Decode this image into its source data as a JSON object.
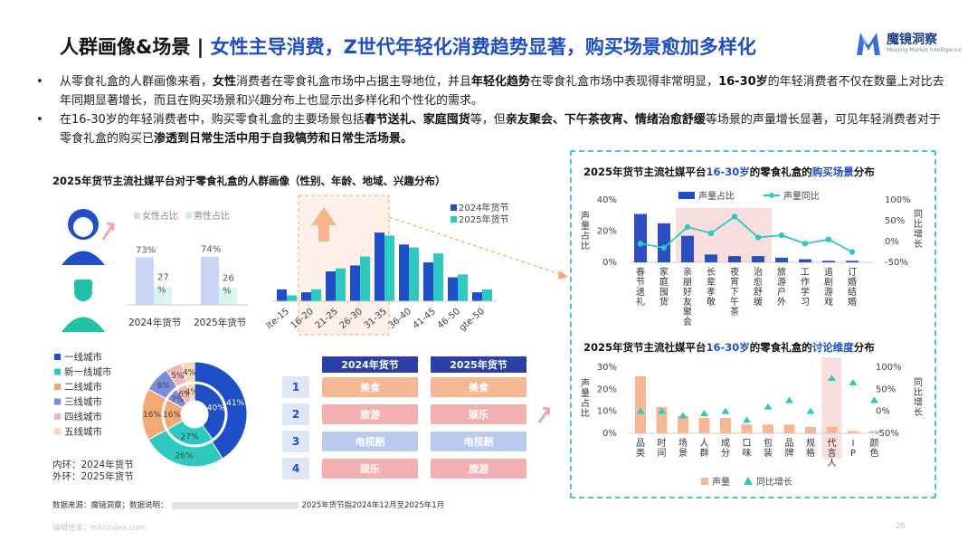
{
  "header": {
    "title_main": "人群画像&场景 | ",
    "title_sub": "女性主导消费，Z世代年轻化消费趋势显著，购买场景愈加多样化",
    "logo_cn": "魔镜洞察",
    "logo_en": "Moojing Market Intelligence"
  },
  "bullets": [
    [
      {
        "t": "从零食礼盒的人群画像来看，",
        "b": false
      },
      {
        "t": "女性",
        "b": true
      },
      {
        "t": "消费者在零食礼盒市场中占据主导地位，并且",
        "b": false
      },
      {
        "t": "年轻化趋势",
        "b": true
      },
      {
        "t": "在零食礼盒市场中表现得非常明显，",
        "b": false
      },
      {
        "t": "16-30岁",
        "b": true
      },
      {
        "t": "的年轻消费者不仅在数量上对比去年同期显著增长，而且在购买场景和兴趣分布上也显示出多样化和个性化的需求。",
        "b": false
      }
    ],
    [
      {
        "t": "在16-30岁的年轻消费者中，购买零食礼盒的主要场景包括",
        "b": false
      },
      {
        "t": "春节送礼、家庭囤货",
        "b": true
      },
      {
        "t": "等，但",
        "b": false
      },
      {
        "t": "亲友聚会、下午茶夜宵、情绪治愈舒缓",
        "b": true
      },
      {
        "t": "等场景的声量增长显著，可见年轻消费者对于零食礼盒的购买已",
        "b": false
      },
      {
        "t": "渗透到日常生活中用于自我犒劳和日常生活场景。",
        "b": true
      }
    ]
  ],
  "left_title": "2025年货节主流社媒平台对于零食礼盒的人群画像（性别、年龄、地域、兴趣分布）",
  "right_top_title": {
    "pre": "2025年货节主流社媒平台",
    "hl1": "16-30岁",
    "mid": "的零食礼盒的",
    "hl2": "购买场景",
    "post": "分布"
  },
  "right_bottom_title": {
    "pre": "2025年货节主流社媒平台",
    "hl1": "16-30岁",
    "mid": "的零食礼盒的",
    "hl2": "讨论维度",
    "post": "分布"
  },
  "source": {
    "label": "数据来源：魔镜洞察；数据说明：",
    "note": "2025年货节指2024年12月至2025年1月"
  },
  "footer": "编辑搜索：mktindex.com",
  "page_number": "26",
  "colors": {
    "blue": "#1f4fc6",
    "teal": "#2ec9c0",
    "orange": "#f4a974",
    "pink": "#f9dede",
    "dark": "#2b3fa6"
  },
  "chart_data": [
    {
      "type": "bar",
      "name": "gender",
      "categories": [
        "2024年货节",
        "2025年货节"
      ],
      "series": [
        {
          "name": "女性占比",
          "values": [
            73,
            74
          ],
          "labels": [
            "73%",
            "74%"
          ]
        },
        {
          "name": "男性占比",
          "values": [
            27,
            26
          ],
          "labels": [
            "27%",
            "26%"
          ]
        }
      ]
    },
    {
      "type": "bar",
      "name": "age",
      "categories": [
        "lte-15",
        "16-20",
        "21-25",
        "26-30",
        "31-35",
        "36-40",
        "41-45",
        "46-50",
        "gte-50"
      ],
      "series": [
        {
          "name": "2024年货节",
          "values": [
            4,
            3,
            10,
            12,
            23,
            19,
            13,
            8,
            3
          ]
        },
        {
          "name": "2025年货节",
          "values": [
            2,
            4,
            11,
            15,
            22,
            18,
            16,
            9,
            4
          ]
        }
      ]
    },
    {
      "type": "pie",
      "name": "city",
      "legend": [
        "一线城市",
        "新一线城市",
        "二线城市",
        "三线城市",
        "四线城市",
        "五线城市"
      ],
      "legend_colors": [
        "#1f4fc6",
        "#2ec9c0",
        "#f4a974",
        "#7b8cde",
        "#f3b6b6",
        "#f7d7b4"
      ],
      "inner_label": "内环：2024年货节",
      "outer_label": "外环：2025年货节",
      "inner_values": [
        40,
        27,
        16,
        7,
        6,
        4
      ],
      "outer_values": [
        41,
        26,
        16,
        8,
        5,
        4
      ],
      "inner_labels": [
        "40%",
        "27%",
        "16%",
        "7%",
        "6%",
        "4%"
      ],
      "outer_labels": [
        "41%",
        "26%",
        "16%",
        "8%",
        "5%",
        "4%"
      ]
    },
    {
      "type": "table",
      "name": "interest",
      "columns": [
        "2024年货节",
        "2025年货节"
      ],
      "ranks": [
        "1",
        "2",
        "3",
        "4"
      ],
      "rows": [
        [
          "美食",
          "美食"
        ],
        [
          "旅游",
          "娱乐"
        ],
        [
          "电视剧",
          "电视剧"
        ],
        [
          "娱乐",
          "旅游"
        ]
      ]
    },
    {
      "type": "bar",
      "name": "purchase_scenes",
      "categories": [
        "春节送礼",
        "家庭囤货",
        "亲朋好友聚会",
        "长辈孝敬",
        "夜宵下午茶",
        "治愈舒缓",
        "旅游户外",
        "工作学习",
        "追剧游戏",
        "订婚结婚"
      ],
      "series": [
        {
          "name": "声量占比",
          "axis": "left",
          "values": [
            31,
            25,
            17,
            5,
            4,
            4,
            3,
            2,
            1,
            1
          ]
        },
        {
          "name": "声量同比",
          "axis": "right",
          "values": [
            -5,
            -15,
            35,
            20,
            60,
            10,
            15,
            -5,
            5,
            -25
          ]
        }
      ],
      "ylabel_left": "声量占比",
      "ylabel_right": "同比增长",
      "left_ticks": [
        "40%",
        "20%",
        "0%"
      ],
      "right_ticks": [
        "100%",
        "50%",
        "0%",
        "-50%"
      ],
      "ylim_left": [
        0,
        40
      ],
      "ylim_right": [
        -50,
        100
      ]
    },
    {
      "type": "bar",
      "name": "discussion_dimensions",
      "categories": [
        "品类",
        "时间",
        "场景",
        "人群",
        "成分",
        "口味",
        "包装",
        "品牌",
        "规格",
        "代言人",
        "IP",
        "颜色"
      ],
      "series": [
        {
          "name": "声量",
          "axis": "left",
          "values": [
            26,
            12,
            8,
            7,
            7,
            4,
            4,
            4,
            3,
            3,
            1,
            1
          ]
        },
        {
          "name": "同比增长",
          "axis": "right",
          "values": [
            0,
            0,
            -10,
            -5,
            0,
            -20,
            10,
            25,
            0,
            75,
            65,
            25
          ]
        }
      ],
      "ylabel_left": "声量占比",
      "ylabel_right": "同比增长",
      "left_ticks": [
        "30%",
        "20%",
        "10%",
        "0%"
      ],
      "right_ticks": [
        "100%",
        "50%",
        "0%",
        "-50%"
      ],
      "ylim_left": [
        0,
        30
      ],
      "ylim_right": [
        -50,
        100
      ]
    }
  ]
}
